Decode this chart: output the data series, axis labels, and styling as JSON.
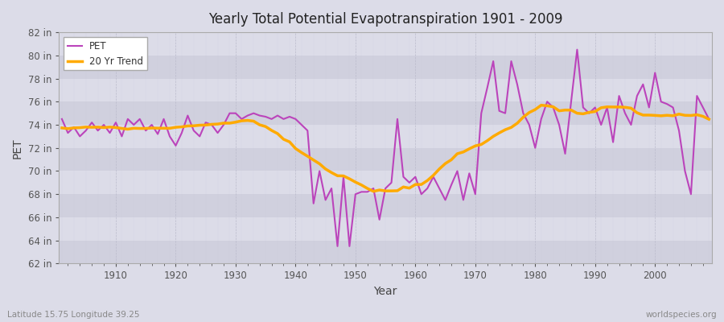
{
  "title": "Yearly Total Potential Evapotranspiration 1901 - 2009",
  "xlabel": "Year",
  "ylabel": "PET",
  "bottom_left_label": "Latitude 15.75 Longitude 39.25",
  "bottom_right_label": "worldspecies.org",
  "pet_color": "#bb44bb",
  "trend_color": "#ffaa00",
  "background_color": "#dcdce8",
  "plot_bg_color": "#dcdce8",
  "ylim": [
    62,
    82
  ],
  "ytick_values": [
    62,
    64,
    66,
    68,
    70,
    72,
    74,
    76,
    78,
    80,
    82
  ],
  "ytick_labels": [
    "62 in",
    "64 in",
    "66 in",
    "68 in",
    "70 in",
    "72 in",
    "74 in",
    "76 in",
    "78 in",
    "80 in",
    "82 in"
  ],
  "years": [
    1901,
    1902,
    1903,
    1904,
    1905,
    1906,
    1907,
    1908,
    1909,
    1910,
    1911,
    1912,
    1913,
    1914,
    1915,
    1916,
    1917,
    1918,
    1919,
    1920,
    1921,
    1922,
    1923,
    1924,
    1925,
    1926,
    1927,
    1928,
    1929,
    1930,
    1931,
    1932,
    1933,
    1934,
    1935,
    1936,
    1937,
    1938,
    1939,
    1940,
    1941,
    1942,
    1943,
    1944,
    1945,
    1946,
    1947,
    1948,
    1949,
    1950,
    1951,
    1952,
    1953,
    1954,
    1955,
    1956,
    1957,
    1958,
    1959,
    1960,
    1961,
    1962,
    1963,
    1964,
    1965,
    1966,
    1967,
    1968,
    1969,
    1970,
    1971,
    1972,
    1973,
    1974,
    1975,
    1976,
    1977,
    1978,
    1979,
    1980,
    1981,
    1982,
    1983,
    1984,
    1985,
    1986,
    1987,
    1988,
    1989,
    1990,
    1991,
    1992,
    1993,
    1994,
    1995,
    1996,
    1997,
    1998,
    1999,
    2000,
    2001,
    2002,
    2003,
    2004,
    2005,
    2006,
    2007,
    2008,
    2009
  ],
  "pet_values": [
    74.5,
    73.3,
    73.8,
    73.0,
    73.5,
    74.2,
    73.5,
    74.0,
    73.3,
    74.2,
    73.0,
    74.5,
    74.0,
    74.5,
    73.5,
    74.0,
    73.2,
    74.5,
    73.0,
    72.2,
    73.3,
    74.8,
    73.5,
    73.0,
    74.2,
    74.0,
    73.3,
    74.0,
    75.0,
    75.0,
    74.5,
    74.8,
    75.0,
    74.8,
    74.7,
    74.5,
    74.8,
    74.5,
    74.7,
    74.5,
    74.0,
    73.5,
    67.2,
    70.0,
    67.5,
    68.5,
    63.5,
    69.5,
    63.5,
    68.0,
    68.2,
    68.2,
    68.5,
    65.8,
    68.5,
    69.0,
    74.5,
    69.5,
    69.0,
    69.5,
    68.0,
    68.5,
    69.5,
    68.5,
    67.5,
    68.8,
    70.0,
    67.5,
    69.8,
    68.0,
    75.0,
    77.2,
    79.5,
    75.2,
    75.0,
    79.5,
    77.5,
    75.0,
    74.0,
    72.0,
    74.5,
    76.0,
    75.5,
    74.0,
    71.5,
    76.0,
    80.5,
    75.5,
    75.0,
    75.5,
    74.0,
    75.5,
    72.5,
    76.5,
    75.0,
    74.0,
    76.5,
    77.5,
    75.5,
    78.5,
    76.0,
    75.8,
    75.5,
    73.5,
    70.0,
    68.0,
    76.5,
    75.5,
    74.5
  ],
  "figsize": [
    9.0,
    4.0
  ],
  "dpi": 100,
  "trend_window": 20
}
